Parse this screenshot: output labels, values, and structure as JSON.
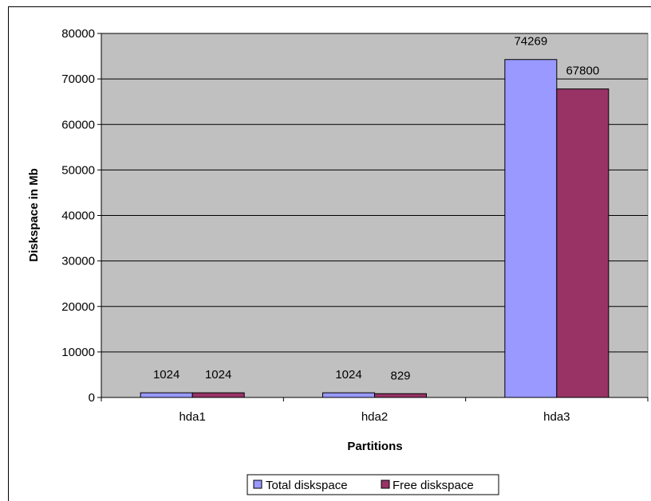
{
  "chart_data": {
    "type": "bar",
    "title": "",
    "xlabel": "Partitions",
    "ylabel": "Diskspace in Mb",
    "categories": [
      "hda1",
      "hda2",
      "hda3"
    ],
    "ylim": [
      0,
      80000
    ],
    "yticks": [
      0,
      10000,
      20000,
      30000,
      40000,
      50000,
      60000,
      70000,
      80000
    ],
    "grid": true,
    "legend_position": "bottom",
    "series": [
      {
        "name": "Total diskspace",
        "values": [
          1024,
          1024,
          74269
        ],
        "color": "#9999ff"
      },
      {
        "name": "Free diskspace",
        "values": [
          1024,
          829,
          67800
        ],
        "color": "#993366"
      }
    ],
    "plot_background": "#c0c0c0"
  }
}
